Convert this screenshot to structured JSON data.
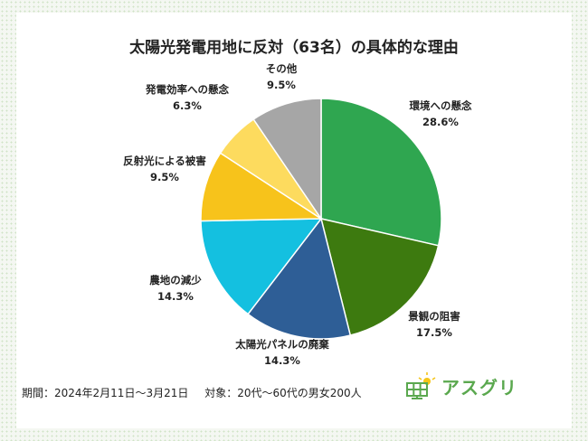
{
  "chart_data": {
    "type": "pie",
    "title": "太陽光発電用地に反対（63名）の具体的な理由",
    "slices": [
      {
        "label": "環境への懸念",
        "value": 28.6,
        "display": "28.6%",
        "color": "#2fa650"
      },
      {
        "label": "景観の阻害",
        "value": 17.5,
        "display": "17.5%",
        "color": "#3d7a0f"
      },
      {
        "label": "太陽光パネルの廃棄",
        "value": 14.3,
        "display": "14.3%",
        "color": "#2e5e96"
      },
      {
        "label": "農地の減少",
        "value": 14.3,
        "display": "14.3%",
        "color": "#14c0e0"
      },
      {
        "label": "反射光による被害",
        "value": 9.5,
        "display": "9.5%",
        "color": "#f7c31b"
      },
      {
        "label": "発電効率への懸念",
        "value": 6.3,
        "display": "6.3%",
        "color": "#fddb5e"
      },
      {
        "label": "その他",
        "value": 9.5,
        "display": "9.5%",
        "color": "#a6a6a6"
      }
    ]
  },
  "footer": {
    "period": "期間：2024年2月11日〜3月21日",
    "target": "対象：20代〜60代の男女200人"
  },
  "brand": {
    "name": "アスグリ",
    "icon": "solar-panel-sun-icon",
    "color": "#5aa84e"
  }
}
